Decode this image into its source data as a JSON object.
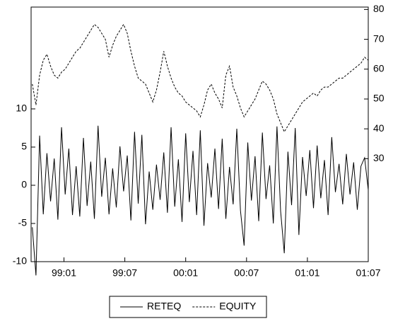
{
  "chart_data": {
    "type": "line",
    "x": [
      1998.74,
      1998.77,
      1998.8,
      1998.83,
      1998.86,
      1998.89,
      1998.92,
      1998.95,
      1998.98,
      1999.01,
      1999.04,
      1999.07,
      1999.1,
      1999.13,
      1999.16,
      1999.19,
      1999.22,
      1999.25,
      1999.28,
      1999.31,
      1999.34,
      1999.37,
      1999.4,
      1999.43,
      1999.46,
      1999.49,
      1999.52,
      1999.55,
      1999.58,
      1999.61,
      1999.64,
      1999.67,
      1999.7,
      1999.73,
      1999.76,
      1999.79,
      1999.82,
      1999.85,
      1999.88,
      1999.91,
      1999.94,
      1999.97,
      2000.0,
      2000.03,
      2000.06,
      2000.09,
      2000.12,
      2000.15,
      2000.18,
      2000.21,
      2000.24,
      2000.27,
      2000.3,
      2000.33,
      2000.36,
      2000.39,
      2000.42,
      2000.45,
      2000.48,
      2000.51,
      2000.54,
      2000.57,
      2000.6,
      2000.63,
      2000.66,
      2000.69,
      2000.72,
      2000.75,
      2000.78,
      2000.81,
      2000.84,
      2000.87,
      2000.9,
      2000.93,
      2000.96,
      2000.99,
      2001.02,
      2001.05,
      2001.08,
      2001.11,
      2001.14,
      2001.17,
      2001.2,
      2001.23,
      2001.26,
      2001.29,
      2001.32,
      2001.35,
      2001.38,
      2001.41,
      2001.44,
      2001.47,
      2001.5
    ],
    "xlim": [
      1998.73,
      2001.5
    ],
    "xticks": [
      {
        "value": 1999.0,
        "label": "99:01"
      },
      {
        "value": 1999.5,
        "label": "99:07"
      },
      {
        "value": 2000.0,
        "label": "00:01"
      },
      {
        "value": 2000.5,
        "label": "00:07"
      },
      {
        "value": 2001.0,
        "label": "01:01"
      },
      {
        "value": 2001.5,
        "label": "01:07"
      }
    ],
    "ylim": [
      -10,
      23.33
    ],
    "yticks": [
      -10,
      -5,
      0,
      5,
      10
    ],
    "y2lim": [
      -4.5,
      80.8
    ],
    "y2ticks": [
      30,
      40,
      50,
      60,
      70,
      80
    ],
    "legend": "bottom",
    "series": [
      {
        "name": "RETEQ",
        "color": "#000000",
        "line_style": "solid",
        "values": [
          -5.5,
          -11.8,
          6.5,
          -3.8,
          4.2,
          -2.1,
          3.5,
          -4.5,
          7.6,
          -1.2,
          4.8,
          -3.9,
          2.5,
          -4.1,
          6.2,
          -2.7,
          3.1,
          -4.4,
          7.8,
          -1.5,
          3.6,
          -3.8,
          2.2,
          -2.9,
          5.1,
          -0.8,
          3.9,
          -4.6,
          7.0,
          -2.4,
          6.6,
          -5.1,
          1.8,
          -3.2,
          2.7,
          -1.9,
          4.3,
          -3.6,
          7.6,
          -2.8,
          3.4,
          -4.8,
          6.8,
          -2.2,
          4.5,
          -3.9,
          7.2,
          -5.3,
          2.9,
          -1.6,
          4.8,
          -3.1,
          6.1,
          -4.4,
          2.4,
          -2.5,
          7.4,
          -3.3,
          -7.9,
          5.6,
          -2.0,
          3.8,
          -4.7,
          6.9,
          -1.8,
          2.6,
          -5.0,
          7.7,
          -3.4,
          -8.9,
          4.4,
          -2.6,
          7.5,
          -6.5,
          3.7,
          -1.4,
          4.6,
          -3.0,
          5.2,
          -1.7,
          3.3,
          -3.9,
          6.3,
          -0.9,
          2.8,
          -2.5,
          4.1,
          -1.2,
          3.0,
          -3.2,
          2.5,
          3.6,
          -0.6
        ]
      },
      {
        "name": "EQUITY",
        "color": "#000000",
        "line_style": "dashed",
        "axis": "y2",
        "values": [
          55,
          48,
          58,
          63,
          65,
          61,
          58,
          57,
          59,
          60,
          62,
          64,
          66,
          67,
          69,
          71,
          73,
          75,
          74,
          72,
          70,
          64,
          68,
          71,
          73,
          75,
          72,
          66,
          61,
          57,
          56,
          55,
          52,
          49,
          53,
          59,
          66,
          61,
          57,
          54,
          52,
          51,
          49,
          48,
          47,
          46,
          44,
          48,
          53,
          55,
          52,
          50,
          47,
          58,
          61,
          54,
          51,
          47,
          44,
          46,
          48,
          50,
          53,
          56,
          55,
          53,
          50,
          45,
          42,
          39,
          41,
          43,
          45,
          47,
          49,
          50,
          51,
          52,
          51,
          53,
          54,
          54,
          55,
          56,
          57,
          57,
          58,
          59,
          60,
          61,
          62,
          64,
          63
        ]
      }
    ]
  }
}
